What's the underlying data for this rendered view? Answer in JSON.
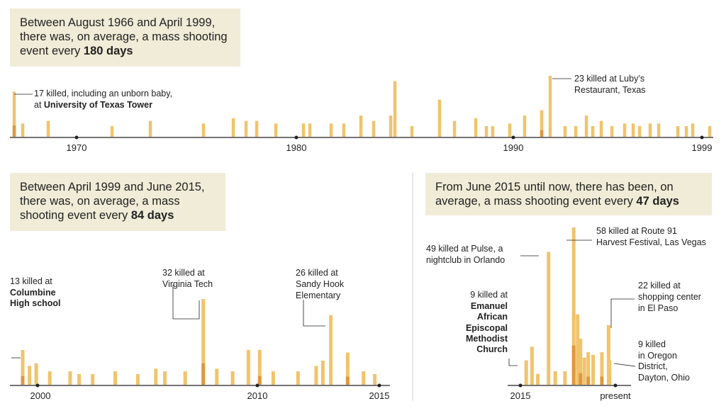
{
  "panel1": {
    "callout": {
      "text_pre": "Between August 1966 and April 1999, there was, on average, a mass shooting event every ",
      "highlight": "180 days"
    },
    "ticks": [
      "1970",
      "1980",
      "1990",
      "1999"
    ],
    "annotations": [
      {
        "lines": [
          "17 killed, including an unborn baby,"
        ],
        "prefix": "at ",
        "bold": "University of Texas Tower"
      },
      {
        "lines": [
          "23 killed at Luby’s",
          "Restaurant, Texas"
        ]
      }
    ]
  },
  "panel2": {
    "callout": {
      "text_pre": "Between April 1999 and June 2015, there was, on average, a mass shooting event every ",
      "highlight": "84 days"
    },
    "ticks": [
      "2000",
      "2010",
      "2015"
    ],
    "annotations": [
      {
        "lines": [
          "13 killed at"
        ],
        "bold_lines": [
          "Columbine",
          "High school"
        ]
      },
      {
        "lines": [
          "32 killed at",
          "Virginia Tech"
        ]
      },
      {
        "lines": [
          "26 killed at",
          "Sandy Hook",
          "Elementary"
        ]
      }
    ]
  },
  "panel3": {
    "callout": {
      "text_pre": "From June 2015 until now, there has been, on average, a mass shooting event every ",
      "highlight": "47 days"
    },
    "ticks": [
      "2015",
      "present"
    ],
    "annotations": [
      {
        "lines": [
          "49 killed at Pulse, a",
          "nightclub in Orlando"
        ]
      },
      {
        "lines": [
          "58 killed at Route 91",
          "Harvest Festival, Las Vegas"
        ]
      },
      {
        "lines": [
          "9 killed at"
        ],
        "bold_lines": [
          "Emanuel",
          "African",
          "Episcopal",
          "Methodist",
          "Church"
        ]
      },
      {
        "lines": [
          "22 killed at",
          "shopping center",
          "in El Paso"
        ]
      },
      {
        "lines": [
          "9 killed",
          "in Oregon",
          "District,",
          "Dayton, Ohio"
        ]
      }
    ]
  },
  "colors": {
    "bar": "#f0c46c",
    "bar_dark": "#d98a2e",
    "callout_bg": "#f1ecd7",
    "axis": "#222222"
  },
  "chart_data": [
    {
      "type": "bar",
      "title": "Between August 1966 and April 1999",
      "x_unit": "year",
      "y_unit": "killed",
      "xlim": [
        1966.6,
        1999.3
      ],
      "events": [
        {
          "x": 1966.6,
          "y": 17
        },
        {
          "x": 1967.0,
          "y": 5
        },
        {
          "x": 1968.2,
          "y": 6
        },
        {
          "x": 1971.2,
          "y": 4
        },
        {
          "x": 1973.0,
          "y": 6
        },
        {
          "x": 1975.5,
          "y": 5
        },
        {
          "x": 1976.9,
          "y": 7
        },
        {
          "x": 1977.5,
          "y": 6
        },
        {
          "x": 1978.0,
          "y": 6
        },
        {
          "x": 1978.9,
          "y": 5
        },
        {
          "x": 1980.2,
          "y": 5
        },
        {
          "x": 1980.5,
          "y": 5
        },
        {
          "x": 1981.5,
          "y": 5
        },
        {
          "x": 1982.1,
          "y": 5
        },
        {
          "x": 1982.9,
          "y": 8
        },
        {
          "x": 1983.5,
          "y": 6
        },
        {
          "x": 1984.3,
          "y": 8
        },
        {
          "x": 1984.5,
          "y": 21
        },
        {
          "x": 1985.3,
          "y": 4
        },
        {
          "x": 1986.6,
          "y": 14
        },
        {
          "x": 1987.3,
          "y": 6
        },
        {
          "x": 1988.3,
          "y": 7
        },
        {
          "x": 1988.8,
          "y": 4
        },
        {
          "x": 1989.1,
          "y": 4
        },
        {
          "x": 1989.9,
          "y": 5
        },
        {
          "x": 1990.6,
          "y": 8
        },
        {
          "x": 1991.4,
          "y": 10
        },
        {
          "x": 1991.8,
          "y": 23
        },
        {
          "x": 1992.5,
          "y": 4
        },
        {
          "x": 1993.0,
          "y": 4
        },
        {
          "x": 1993.5,
          "y": 8
        },
        {
          "x": 1993.8,
          "y": 4
        },
        {
          "x": 1994.2,
          "y": 6
        },
        {
          "x": 1994.7,
          "y": 4
        },
        {
          "x": 1995.3,
          "y": 5
        },
        {
          "x": 1995.7,
          "y": 5
        },
        {
          "x": 1996.0,
          "y": 4
        },
        {
          "x": 1996.5,
          "y": 5
        },
        {
          "x": 1996.9,
          "y": 5
        },
        {
          "x": 1997.8,
          "y": 4
        },
        {
          "x": 1998.2,
          "y": 4
        },
        {
          "x": 1998.5,
          "y": 5
        },
        {
          "x": 1999.3,
          "y": 4
        }
      ]
    },
    {
      "type": "bar",
      "title": "Between April 1999 and June 2015",
      "x_unit": "year",
      "y_unit": "killed",
      "xlim": [
        1999.3,
        2015.1
      ],
      "events": [
        {
          "x": 1999.3,
          "y": 13
        },
        {
          "x": 1999.6,
          "y": 7
        },
        {
          "x": 1999.9,
          "y": 8
        },
        {
          "x": 2000.5,
          "y": 5
        },
        {
          "x": 2001.4,
          "y": 5
        },
        {
          "x": 2001.8,
          "y": 4
        },
        {
          "x": 2002.4,
          "y": 4
        },
        {
          "x": 2003.4,
          "y": 5
        },
        {
          "x": 2004.4,
          "y": 4
        },
        {
          "x": 2005.2,
          "y": 6
        },
        {
          "x": 2005.6,
          "y": 5
        },
        {
          "x": 2006.5,
          "y": 5
        },
        {
          "x": 2007.3,
          "y": 32
        },
        {
          "x": 2007.9,
          "y": 6
        },
        {
          "x": 2008.6,
          "y": 5
        },
        {
          "x": 2009.3,
          "y": 13
        },
        {
          "x": 2009.8,
          "y": 13
        },
        {
          "x": 2010.4,
          "y": 5
        },
        {
          "x": 2011.5,
          "y": 5
        },
        {
          "x": 2012.3,
          "y": 7
        },
        {
          "x": 2012.6,
          "y": 9
        },
        {
          "x": 2012.95,
          "y": 26
        },
        {
          "x": 2013.7,
          "y": 12
        },
        {
          "x": 2014.4,
          "y": 5
        },
        {
          "x": 2014.9,
          "y": 4
        }
      ]
    },
    {
      "type": "bar",
      "title": "From June 2015 until now",
      "x_unit": "year",
      "y_unit": "killed",
      "xlim": [
        2015.0,
        2019.9
      ],
      "events": [
        {
          "x": 2015.3,
          "y": 9
        },
        {
          "x": 2015.6,
          "y": 14
        },
        {
          "x": 2015.9,
          "y": 4
        },
        {
          "x": 2016.45,
          "y": 49
        },
        {
          "x": 2016.8,
          "y": 5
        },
        {
          "x": 2017.3,
          "y": 5
        },
        {
          "x": 2017.75,
          "y": 58
        },
        {
          "x": 2017.95,
          "y": 26
        },
        {
          "x": 2018.1,
          "y": 17
        },
        {
          "x": 2018.3,
          "y": 10
        },
        {
          "x": 2018.5,
          "y": 12
        },
        {
          "x": 2018.75,
          "y": 11
        },
        {
          "x": 2019.2,
          "y": 12
        },
        {
          "x": 2019.55,
          "y": 22
        },
        {
          "x": 2019.6,
          "y": 9
        }
      ]
    }
  ]
}
